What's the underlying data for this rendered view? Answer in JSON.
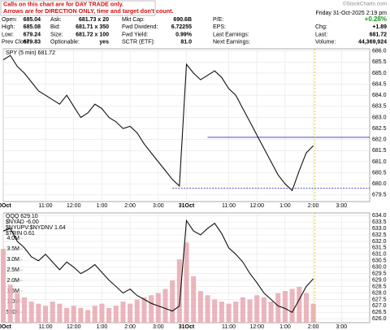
{
  "notice": [
    "Calls on this chart are for DAY TRADE only.",
    "Arrows are for DIRECTION ONLY, time and target don't count."
  ],
  "datetime": "Friday  31-Oct-2025  2:19 pm",
  "brand": "©StockCharts.com",
  "quote": {
    "columns": [
      [
        {
          "label": "Open:",
          "value": "685.04"
        },
        {
          "label": "High:",
          "value": "685.08"
        },
        {
          "label": "Low:",
          "value": "679.24"
        },
        {
          "label": "Prev Close:",
          "value": "679.83"
        }
      ],
      [
        {
          "label": "Ask:",
          "value": "681.73 x 20"
        },
        {
          "label": "Bid:",
          "value": "681.71 x 350"
        },
        {
          "label": "Size:",
          "value": "681.72 x 100"
        },
        {
          "label": "Optionable:",
          "value": "yes"
        }
      ],
      [
        {
          "label": "Mkt Cap:",
          "value": "690.6B"
        },
        {
          "label": "Fwd Dividend:",
          "value": "6.72255"
        },
        {
          "label": "Fwd Yield:",
          "value": "0.99%"
        },
        {
          "label": "SCTR (ETF):",
          "value": "81.0"
        }
      ],
      [
        {
          "label": "P/E:"
        },
        {
          "label": "EPS:"
        },
        {
          "label": "Last Earnings:"
        },
        {
          "label": "Next Earnings:"
        }
      ],
      [
        {
          "value": "+0.28%",
          "color": "#1a9a1a"
        },
        {
          "label": "Chg:",
          "value": "+1.89"
        },
        {
          "label": "Last:",
          "value": "681.72"
        },
        {
          "label": "Volume:",
          "value": "44,369,924"
        }
      ]
    ]
  },
  "chart_data": [
    {
      "type": "line",
      "title": "SPY (5 min) 681.72",
      "color": "#111111",
      "x": [
        0,
        1,
        2,
        3,
        4,
        5,
        6,
        7,
        8,
        9,
        10,
        11,
        12,
        13,
        14,
        15,
        16,
        17,
        18,
        19,
        20,
        21,
        22,
        23,
        24,
        25,
        26,
        27,
        28,
        29,
        30,
        31,
        32,
        33,
        34,
        35,
        36,
        37,
        38,
        39,
        40,
        41,
        42,
        43,
        44
      ],
      "values": [
        685.6,
        685.8,
        685.3,
        685.0,
        684.6,
        684.2,
        684.0,
        683.8,
        683.6,
        684.0,
        683.5,
        683.0,
        683.2,
        683.6,
        683.4,
        683.0,
        682.8,
        682.5,
        682.6,
        682.3,
        681.8,
        681.4,
        681.0,
        680.6,
        680.2,
        679.9,
        685.4,
        685.0,
        684.7,
        684.9,
        685.1,
        684.8,
        684.3,
        684.0,
        683.4,
        682.8,
        682.2,
        681.6,
        681.0,
        680.4,
        680.0,
        679.7,
        680.6,
        681.4,
        681.72
      ],
      "levels": [
        {
          "value": 682.1,
          "color": "#3030b0",
          "from": 29
        },
        {
          "value": 679.8,
          "color": "#3030b0",
          "from": 24,
          "dashed": true
        }
      ],
      "xlim": [
        0,
        52
      ],
      "xticks": [
        {
          "value": 0,
          "label": "30Oct"
        },
        {
          "value": 6,
          "label": "11:00"
        },
        {
          "value": 10,
          "label": "12:00"
        },
        {
          "value": 14,
          "label": "1:00"
        },
        {
          "value": 18,
          "label": "2:00"
        },
        {
          "value": 22,
          "label": "3:00"
        },
        {
          "value": 26,
          "label": "31Oct"
        },
        {
          "value": 32,
          "label": "11:00"
        },
        {
          "value": 36,
          "label": "12:00"
        },
        {
          "value": 40,
          "label": "1:00"
        },
        {
          "value": 44,
          "label": "2:00"
        },
        {
          "value": 48,
          "label": "3:00"
        }
      ],
      "ylim": [
        679.2,
        686.1
      ],
      "yticks": [
        679.5,
        {
          "value": 680,
          "label": "680.0"
        },
        680.5,
        {
          "value": 681,
          "label": "681.0"
        },
        681.5,
        {
          "value": 682,
          "label": "682.0"
        },
        682.5,
        {
          "value": 683,
          "label": "683.0"
        },
        683.5,
        {
          "value": 684,
          "label": "684.0"
        },
        684.5,
        {
          "value": 685,
          "label": "685.0"
        },
        685.5,
        {
          "value": 686,
          "label": "686.0"
        }
      ]
    },
    {
      "type": "line",
      "legend": [
        "QQQ 629.10",
        "$NYAD -6.00",
        "$NYUPV:$NYDNV 1.64",
        "$TRIN 0.61"
      ],
      "color": "#111111",
      "x": [
        0,
        1,
        2,
        3,
        4,
        5,
        6,
        7,
        8,
        9,
        10,
        11,
        12,
        13,
        14,
        15,
        16,
        17,
        18,
        19,
        20,
        21,
        22,
        23,
        24,
        25,
        26,
        27,
        28,
        29,
        30,
        31,
        32,
        33,
        34,
        35,
        36,
        37,
        38,
        39,
        40,
        41,
        42,
        43,
        44
      ],
      "values": [
        632.8,
        633.0,
        632.0,
        631.5,
        630.8,
        630.5,
        631.0,
        630.4,
        629.8,
        630.4,
        630.0,
        629.5,
        629.8,
        630.2,
        629.6,
        629.0,
        628.5,
        628.0,
        628.3,
        627.8,
        627.5,
        627.2,
        627.0,
        626.8,
        626.6,
        627.0,
        633.6,
        632.8,
        632.5,
        633.0,
        633.4,
        632.6,
        631.5,
        631.0,
        630.4,
        629.5,
        628.8,
        628.0,
        627.5,
        627.0,
        626.8,
        626.5,
        627.5,
        628.5,
        629.1
      ],
      "volume": {
        "axis": "y2",
        "color": "#e8a8b0",
        "values": [
          3500000,
          1800000,
          1400000,
          1200000,
          1000000,
          900000,
          800000,
          1000000,
          900000,
          700000,
          800000,
          700000,
          600000,
          800000,
          900000,
          700000,
          800000,
          1000000,
          900000,
          1100000,
          1200000,
          1300000,
          1400000,
          1600000,
          2000000,
          3000000,
          3800000,
          2200000,
          1500000,
          1300000,
          1100000,
          1000000,
          900000,
          1000000,
          1200000,
          1100000,
          1300000,
          1200000,
          1000000,
          1400000,
          1500000,
          1600000,
          1700000,
          1400000,
          900000
        ]
      },
      "xlim": [
        0,
        52
      ],
      "xticks": [
        {
          "value": 0,
          "label": "30Oct"
        },
        {
          "value": 6,
          "label": "11:00"
        },
        {
          "value": 10,
          "label": "12:00"
        },
        {
          "value": 14,
          "label": "1:00"
        },
        {
          "value": 18,
          "label": "2:00"
        },
        {
          "value": 22,
          "label": "3:00"
        },
        {
          "value": 26,
          "label": "31Oct"
        },
        {
          "value": 32,
          "label": "11:00"
        },
        {
          "value": 36,
          "label": "12:00"
        },
        {
          "value": 40,
          "label": "1:00"
        },
        {
          "value": 44,
          "label": "2:00"
        },
        {
          "value": 48,
          "label": "3:00"
        }
      ],
      "ylim": [
        625.7,
        634.2
      ],
      "yticks": [
        {
          "value": 626,
          "label": "626.0"
        },
        626.5,
        {
          "value": 627,
          "label": "627.0"
        },
        627.5,
        {
          "value": 628,
          "label": "628.0"
        },
        628.5,
        {
          "value": 629,
          "label": "629.0"
        },
        629.5,
        {
          "value": 630,
          "label": "630.0"
        },
        630.5,
        {
          "value": 631,
          "label": "631.0"
        },
        631.5,
        {
          "value": 632,
          "label": "632.0"
        },
        632.5,
        {
          "value": 633,
          "label": "633.0"
        },
        633.5,
        {
          "value": 634,
          "label": "634.0"
        }
      ],
      "y2lim": [
        0,
        5200000
      ],
      "y2ticks": [
        {
          "value": 500000,
          "label": "500K"
        },
        {
          "value": 1000000,
          "label": "1.0M"
        },
        {
          "value": 1500000,
          "label": "1.5M"
        },
        {
          "value": 2000000,
          "label": "2.0M"
        },
        {
          "value": 2500000,
          "label": "2.5M"
        },
        {
          "value": 3000000,
          "label": "3.0M"
        },
        {
          "value": 3500000,
          "label": "3.5M"
        },
        {
          "value": 4000000,
          "label": "4.0M"
        }
      ]
    }
  ]
}
